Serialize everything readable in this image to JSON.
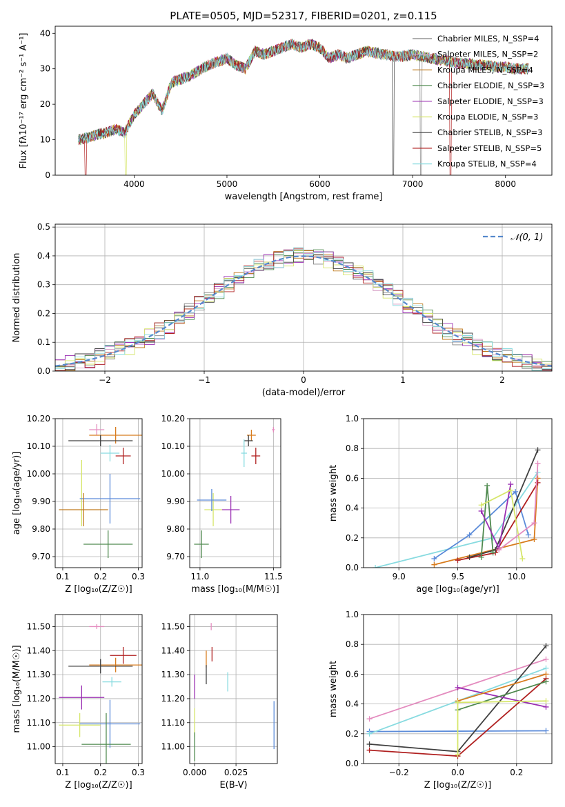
{
  "chart_data": [
    {
      "id": "spectrum",
      "type": "line",
      "title": "PLATE=0505, MJD=52317, FIBERID=0201, z=0.115",
      "xlabel": "wavelength [Angstrom, rest frame]",
      "ylabel": "Flux [fλ10⁻¹⁷ erg cm⁻² s⁻¹ A⁻¹]",
      "xlim": [
        3150,
        8500
      ],
      "ylim": [
        0,
        42
      ],
      "xticks": [
        4000,
        5000,
        6000,
        7000,
        8000
      ],
      "yticks": [
        0,
        10,
        20,
        30,
        40
      ],
      "legend_position": "upper-right",
      "continuum": {
        "x": [
          3400,
          3500,
          3600,
          3700,
          3800,
          3900,
          4000,
          4100,
          4200,
          4300,
          4400,
          4500,
          4600,
          4700,
          4800,
          4900,
          5000,
          5100,
          5200,
          5300,
          5400,
          5500,
          5600,
          5700,
          5800,
          5900,
          6000,
          6100,
          6200,
          6300,
          6400,
          6500,
          6600,
          6700,
          6800,
          6900,
          7000,
          7100,
          7200,
          7300,
          7400,
          7500,
          7600,
          7700,
          7800,
          7900,
          8000,
          8100,
          8200,
          8250
        ],
        "y": [
          10,
          10.5,
          11.5,
          12,
          13,
          12,
          17,
          20,
          23,
          18,
          26,
          27,
          28,
          29.5,
          31,
          32,
          33,
          31,
          30,
          35,
          34,
          35,
          36,
          37,
          36,
          37,
          36,
          33,
          34,
          33,
          34,
          35,
          34.5,
          34,
          33.5,
          33.5,
          34,
          33.5,
          33,
          32.5,
          32,
          31.5,
          31.5,
          31,
          31,
          30.5,
          30.5,
          30,
          30,
          30
        ]
      },
      "series": [
        {
          "name": "Chabrier MILES, N_SSP=4",
          "color": "#808080"
        },
        {
          "name": "Salpeter MILES, N_SSP=2",
          "color": "#d59bc3"
        },
        {
          "name": "Kroupa MILES, N_SSP=4",
          "color": "#c07a1e"
        },
        {
          "name": "Chabrier ELODIE, N_SSP=3",
          "color": "#4f8a4f"
        },
        {
          "name": "Salpeter ELODIE, N_SSP=3",
          "color": "#9b30b3"
        },
        {
          "name": "Kroupa ELODIE, N_SSP=3",
          "color": "#d6e66a"
        },
        {
          "name": "Chabrier STELIB, N_SSP=3",
          "color": "#404040"
        },
        {
          "name": "Salpeter STELIB, N_SSP=5",
          "color": "#b02020"
        },
        {
          "name": "Kroupa STELIB, N_SSP=4",
          "color": "#88dbe0"
        }
      ]
    },
    {
      "id": "residuals",
      "type": "line",
      "xlabel": "(data-model)/error",
      "ylabel": "Normed distribution",
      "xlim": [
        -2.5,
        2.5
      ],
      "ylim": [
        0,
        0.51
      ],
      "xticks": [
        -2,
        -1,
        0,
        1,
        2
      ],
      "yticks": [
        0.0,
        0.1,
        0.2,
        0.3,
        0.4,
        0.5
      ],
      "grid": true,
      "legend_position": "upper-right",
      "gaussian": {
        "name": "𝒩(0, 1)",
        "color": "#5588cc"
      },
      "bin_width": 0.1,
      "bin_start": -2.5,
      "series": [
        {
          "color": "#808080"
        },
        {
          "color": "#d59bc3"
        },
        {
          "color": "#c07a1e"
        },
        {
          "color": "#4f8a4f"
        },
        {
          "color": "#9b30b3"
        },
        {
          "color": "#d6e66a"
        },
        {
          "color": "#404040"
        },
        {
          "color": "#b02020"
        },
        {
          "color": "#88dbe0"
        }
      ]
    },
    {
      "id": "age_vs_Z",
      "type": "scatter",
      "xlabel": "Z [log₁₀(Z/Z☉)]",
      "ylabel": "age  [log₁₀(age/yr)]",
      "xlim": [
        0.08,
        0.31
      ],
      "ylim": [
        9.66,
        10.2
      ],
      "xticks": [
        0.1,
        0.2,
        0.3
      ],
      "yticks": [
        9.7,
        9.8,
        9.9,
        10.0,
        10.1,
        10.2
      ],
      "grid": true,
      "points": [
        {
          "x": 0.19,
          "y": 10.16,
          "xerr": 0.02,
          "yerr": 0.02,
          "color": "#e48cbf"
        },
        {
          "x": 0.24,
          "y": 10.14,
          "xerr": 0.07,
          "yerr": 0.03,
          "color": "#d87c1e"
        },
        {
          "x": 0.2,
          "y": 10.12,
          "xerr": 0.085,
          "yerr": 0.02,
          "color": "#404040"
        },
        {
          "x": 0.225,
          "y": 10.075,
          "xerr": 0.025,
          "yerr": 0.03,
          "color": "#88dbe0"
        },
        {
          "x": 0.26,
          "y": 10.065,
          "xerr": 0.02,
          "yerr": 0.03,
          "color": "#b02020"
        },
        {
          "x": 0.15,
          "y": 9.93,
          "xerr": 0.0,
          "yerr": 0.12,
          "color": "#d6e66a"
        },
        {
          "x": 0.225,
          "y": 9.91,
          "xerr": 0.08,
          "yerr": 0.09,
          "color": "#5b8bd9"
        },
        {
          "x": 0.155,
          "y": 9.87,
          "xerr": 0.065,
          "yerr": 0.06,
          "color": "#c07a1e"
        },
        {
          "x": 0.22,
          "y": 9.745,
          "xerr": 0.065,
          "yerr": 0.05,
          "color": "#4f8a4f"
        }
      ]
    },
    {
      "id": "age_vs_mass",
      "type": "scatter",
      "xlabel": "mass [log₁₀(M/M☉)]",
      "ylabel": "",
      "xlim": [
        10.93,
        11.55
      ],
      "ylim": [
        9.66,
        10.2
      ],
      "xticks": [
        11.0,
        11.5
      ],
      "yticks": [
        9.7,
        9.8,
        9.9,
        10.0,
        10.1,
        10.2
      ],
      "grid": true,
      "points": [
        {
          "x": 11.5,
          "y": 10.16,
          "xerr": 0.01,
          "yerr": 0.01,
          "color": "#e48cbf"
        },
        {
          "x": 11.35,
          "y": 10.14,
          "xerr": 0.03,
          "yerr": 0.02,
          "color": "#d87c1e"
        },
        {
          "x": 11.33,
          "y": 10.12,
          "xerr": 0.03,
          "yerr": 0.02,
          "color": "#404040"
        },
        {
          "x": 11.3,
          "y": 10.075,
          "xerr": 0.02,
          "yerr": 0.05,
          "color": "#88dbe0"
        },
        {
          "x": 11.38,
          "y": 10.065,
          "xerr": 0.03,
          "yerr": 0.03,
          "color": "#b02020"
        },
        {
          "x": 11.09,
          "y": 9.87,
          "xerr": 0.06,
          "yerr": 0.06,
          "color": "#d6e66a"
        },
        {
          "x": 11.08,
          "y": 9.905,
          "xerr": 0.1,
          "yerr": 0.04,
          "color": "#5b8bd9"
        },
        {
          "x": 11.21,
          "y": 9.87,
          "xerr": 0.06,
          "yerr": 0.05,
          "color": "#9b30b3"
        },
        {
          "x": 11.01,
          "y": 9.745,
          "xerr": 0.05,
          "yerr": 0.05,
          "color": "#4f8a4f"
        }
      ]
    },
    {
      "id": "weight_vs_age",
      "type": "line",
      "xlabel": "age  [log₁₀(age/yr)]",
      "ylabel": "mass weight",
      "xlim": [
        8.7,
        10.3
      ],
      "ylim": [
        0,
        1.0
      ],
      "xticks": [
        9.0,
        9.5,
        10.0
      ],
      "yticks": [
        0.0,
        0.2,
        0.4,
        0.6,
        0.8,
        1.0
      ],
      "grid": true,
      "series": [
        {
          "color": "#88dbe0",
          "points": [
            [
              8.8,
              0.0
            ],
            [
              9.8,
              0.2
            ],
            [
              10.18,
              0.64
            ]
          ]
        },
        {
          "color": "#5b8bd9",
          "points": [
            [
              9.3,
              0.06
            ],
            [
              9.6,
              0.22
            ],
            [
              9.99,
              0.51
            ],
            [
              10.1,
              0.22
            ]
          ]
        },
        {
          "color": "#d87c1e",
          "points": [
            [
              9.3,
              0.02
            ],
            [
              10.15,
              0.19
            ],
            [
              10.18,
              0.6
            ]
          ]
        },
        {
          "color": "#b02020",
          "points": [
            [
              9.5,
              0.05
            ],
            [
              9.82,
              0.1
            ],
            [
              10.18,
              0.57
            ]
          ]
        },
        {
          "color": "#404040",
          "points": [
            [
              9.6,
              0.07
            ],
            [
              9.82,
              0.12
            ],
            [
              10.18,
              0.79
            ]
          ]
        },
        {
          "color": "#4f8a4f",
          "points": [
            [
              9.7,
              0.07
            ],
            [
              9.75,
              0.55
            ],
            [
              9.8,
              0.1
            ]
          ]
        },
        {
          "color": "#9b30b3",
          "points": [
            [
              9.7,
              0.38
            ],
            [
              9.85,
              0.13
            ],
            [
              9.95,
              0.56
            ]
          ]
        },
        {
          "color": "#d6e66a",
          "points": [
            [
              9.7,
              0.42
            ],
            [
              9.95,
              0.52
            ],
            [
              10.05,
              0.06
            ]
          ]
        },
        {
          "color": "#e48cbf",
          "points": [
            [
              9.85,
              0.12
            ],
            [
              10.15,
              0.3
            ],
            [
              10.18,
              0.7
            ]
          ]
        }
      ]
    },
    {
      "id": "mass_vs_Z",
      "type": "scatter",
      "xlabel": "Z [log₁₀(Z/Z☉)]",
      "ylabel": "mass [log₁₀(M/M☉)]",
      "xlim": [
        0.08,
        0.31
      ],
      "ylim": [
        10.93,
        11.55
      ],
      "xticks": [
        0.1,
        0.2,
        0.3
      ],
      "yticks": [
        11.0,
        11.1,
        11.2,
        11.3,
        11.4,
        11.5
      ],
      "grid": true,
      "points": [
        {
          "x": 0.19,
          "y": 11.5,
          "xerr": 0.02,
          "yerr": 0.01,
          "color": "#e48cbf"
        },
        {
          "x": 0.26,
          "y": 11.38,
          "xerr": 0.035,
          "yerr": 0.035,
          "color": "#b02020"
        },
        {
          "x": 0.24,
          "y": 11.34,
          "xerr": 0.07,
          "yerr": 0.03,
          "color": "#d87c1e"
        },
        {
          "x": 0.2,
          "y": 11.335,
          "xerr": 0.085,
          "yerr": 0.03,
          "color": "#404040"
        },
        {
          "x": 0.23,
          "y": 11.27,
          "xerr": 0.025,
          "yerr": 0.02,
          "color": "#88dbe0"
        },
        {
          "x": 0.15,
          "y": 11.205,
          "xerr": 0.06,
          "yerr": 0.05,
          "color": "#9b30b3"
        },
        {
          "x": 0.145,
          "y": 11.09,
          "xerr": 0.055,
          "yerr": 0.05,
          "color": "#d6e66a"
        },
        {
          "x": 0.225,
          "y": 11.095,
          "xerr": 0.08,
          "yerr": 0.1,
          "color": "#5b8bd9"
        },
        {
          "x": 0.215,
          "y": 11.01,
          "xerr": 0.065,
          "yerr": 0.13,
          "color": "#4f8a4f"
        }
      ]
    },
    {
      "id": "mass_vs_ebv",
      "type": "scatter",
      "xlabel": "E(B-V)",
      "ylabel": "",
      "xlim": [
        -0.003,
        0.05
      ],
      "ylim": [
        10.93,
        11.55
      ],
      "xticks": [
        0.0,
        0.025
      ],
      "yticks": [
        11.0,
        11.1,
        11.2,
        11.3,
        11.4,
        11.5
      ],
      "grid": true,
      "points": [
        {
          "x": 0.01,
          "y": 11.5,
          "yerr": 0.015,
          "color": "#e48cbf"
        },
        {
          "x": 0.0105,
          "y": 11.385,
          "yerr": 0.03,
          "color": "#b02020"
        },
        {
          "x": 0.007,
          "y": 11.365,
          "yerr": 0.035,
          "color": "#d87c1e"
        },
        {
          "x": 0.007,
          "y": 11.3,
          "yerr": 0.04,
          "color": "#404040"
        },
        {
          "x": 0.02,
          "y": 11.27,
          "yerr": 0.04,
          "color": "#88dbe0"
        },
        {
          "x": 0.0,
          "y": 11.25,
          "yerr": 0.05,
          "color": "#9b30b3"
        },
        {
          "x": 0.0,
          "y": 11.1,
          "yerr": 0.06,
          "color": "#d6e66a"
        },
        {
          "x": 0.0,
          "y": 11.0,
          "yerr": 0.06,
          "color": "#4f8a4f"
        },
        {
          "x": 0.048,
          "y": 11.09,
          "yerr": 0.1,
          "color": "#5b8bd9"
        }
      ]
    },
    {
      "id": "weight_vs_Z",
      "type": "line",
      "xlabel": "Z [log₁₀(Z/Z☉)]",
      "ylabel": "mass weight",
      "xlim": [
        -0.32,
        0.32
      ],
      "ylim": [
        0,
        1.0
      ],
      "xticks": [
        -0.2,
        0.0,
        0.2
      ],
      "yticks": [
        0.0,
        0.2,
        0.4,
        0.6,
        0.8,
        1.0
      ],
      "grid": true,
      "series": [
        {
          "color": "#e48cbf",
          "points": [
            [
              -0.3,
              0.3
            ],
            [
              0.3,
              0.7
            ]
          ]
        },
        {
          "color": "#5b8bd9",
          "points": [
            [
              -0.3,
              0.215
            ],
            [
              0.3,
              0.22
            ]
          ]
        },
        {
          "color": "#88dbe0",
          "points": [
            [
              -0.3,
              0.2
            ],
            [
              0.3,
              0.64
            ]
          ]
        },
        {
          "color": "#404040",
          "points": [
            [
              -0.3,
              0.13
            ],
            [
              0.0,
              0.08
            ],
            [
              0.3,
              0.79
            ]
          ]
        },
        {
          "color": "#b02020",
          "points": [
            [
              -0.3,
              0.09
            ],
            [
              0.0,
              0.05
            ],
            [
              0.3,
              0.57
            ]
          ]
        },
        {
          "color": "#9b30b3",
          "points": [
            [
              0.0,
              0.51
            ],
            [
              0.3,
              0.38
            ]
          ]
        },
        {
          "color": "#4f8a4f",
          "points": [
            [
              0.0,
              0.36
            ],
            [
              0.3,
              0.55
            ]
          ]
        },
        {
          "color": "#d87c1e",
          "points": [
            [
              0.0,
              0.42
            ],
            [
              0.3,
              0.6
            ]
          ]
        },
        {
          "color": "#d6e66a",
          "points": [
            [
              0.0,
              0.06
            ],
            [
              0.0,
              0.41
            ],
            [
              0.3,
              0.42
            ]
          ]
        }
      ]
    }
  ]
}
